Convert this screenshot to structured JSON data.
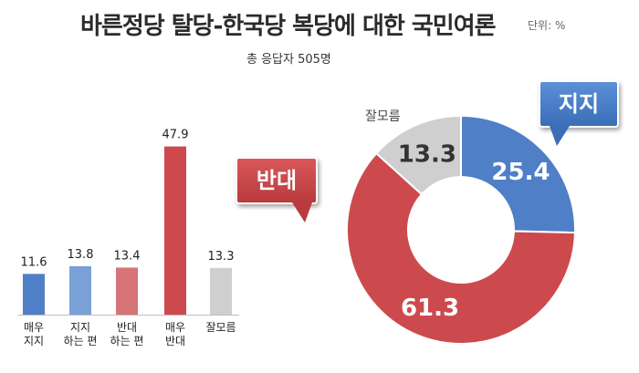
{
  "title": "바른정당 탈당-한국당 복당에 대한 국민여론",
  "unit": "단위: %",
  "respondents": "총 응답자  505명",
  "callouts": {
    "support": "지지",
    "oppose": "반대",
    "unknown": "잘모름"
  },
  "colors": {
    "blue": "#4f7fc6",
    "blue_light": "#7aa0d8",
    "red": "#cc4a4d",
    "red_light": "#d67477",
    "gray": "#cfcfcf"
  },
  "chart_data": [
    {
      "type": "bar",
      "categories": [
        "매우\n지지",
        "지지\n하는 편",
        "반대\n하는 편",
        "매우\n반대",
        "잘모름"
      ],
      "values": [
        11.6,
        13.8,
        13.4,
        47.9,
        13.3
      ],
      "value_labels": [
        "11.6",
        "13.8",
        "13.4",
        "47.9",
        "13.3"
      ],
      "colors": [
        "#4f7fc6",
        "#7aa0d8",
        "#d67477",
        "#cc4a4d",
        "#cfcfcf"
      ]
    },
    {
      "type": "pie",
      "donut": true,
      "categories": [
        "지지",
        "반대",
        "잘모름"
      ],
      "values": [
        25.4,
        61.3,
        13.3
      ],
      "value_labels": [
        "25.4",
        "61.3",
        "13.3"
      ],
      "colors": [
        "#4f7fc6",
        "#cc4a4d",
        "#cfcfcf"
      ]
    }
  ]
}
